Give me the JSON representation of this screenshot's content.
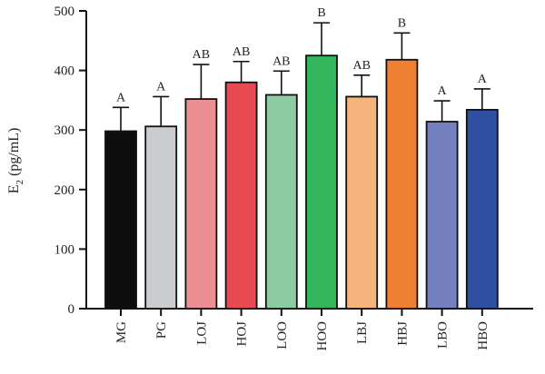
{
  "chart_data": {
    "type": "bar",
    "ylabel": "E",
    "ylabel_subscript": "2",
    "ylabel_suffix": " (pg/mL)",
    "ylim": [
      0,
      500
    ],
    "yticks": [
      "0",
      "100",
      "200",
      "300",
      "400",
      "500"
    ],
    "categories": [
      "MG",
      "PG",
      "LOJ",
      "HOJ",
      "LOO",
      "HOO",
      "LBJ",
      "HBJ",
      "LBO",
      "HBO"
    ],
    "values": [
      298,
      306,
      352,
      380,
      359,
      425,
      356,
      418,
      314,
      334
    ],
    "errors": [
      40,
      50,
      58,
      35,
      40,
      55,
      36,
      45,
      35,
      35
    ],
    "significance": [
      "A",
      "A",
      "AB",
      "AB",
      "AB",
      "B",
      "AB",
      "B",
      "A",
      "A"
    ],
    "colors": [
      "#0d0d0d",
      "#cbcdd0",
      "#ea8f92",
      "#e84a52",
      "#8dcca2",
      "#35b55e",
      "#f4b47b",
      "#ef7f33",
      "#7480bf",
      "#2f4fa2"
    ],
    "grid": false
  }
}
